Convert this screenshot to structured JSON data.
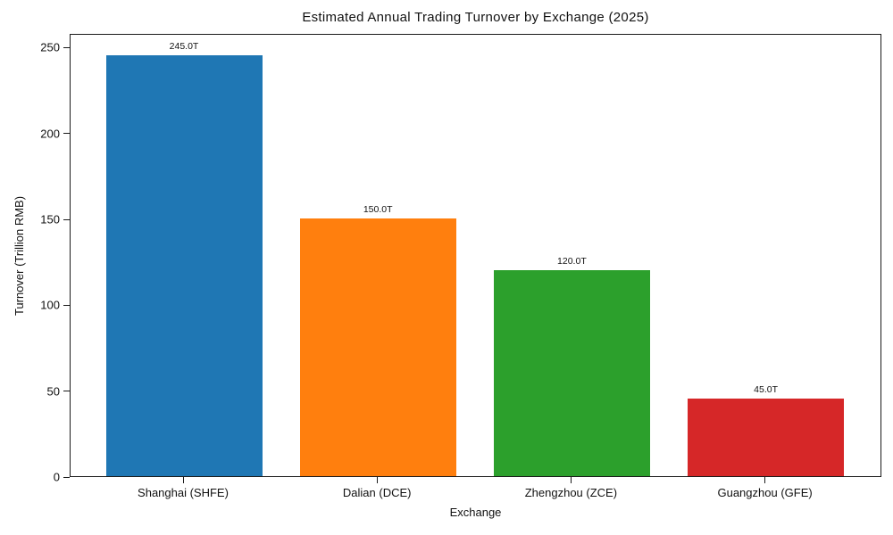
{
  "chart_data": {
    "type": "bar",
    "title": "Estimated Annual Trading Turnover by Exchange (2025)",
    "xlabel": "Exchange",
    "ylabel": "Turnover (Trillion RMB)",
    "categories": [
      "Shanghai (SHFE)",
      "Dalian (DCE)",
      "Zhengzhou (ZCE)",
      "Guangzhou (GFE)"
    ],
    "values": [
      245.0,
      150.0,
      120.0,
      45.0
    ],
    "bar_labels": [
      "245.0T",
      "150.0T",
      "120.0T",
      "45.0T"
    ],
    "bar_colors": [
      "#1f77b4",
      "#ff7f0e",
      "#2ca02c",
      "#d62728"
    ],
    "yticks": [
      0,
      50,
      100,
      150,
      200,
      250
    ],
    "ylim": [
      0,
      258
    ],
    "grid": false,
    "legend_position": "none",
    "background_color": "#ffffff",
    "axis_color": "#1a1a1a",
    "text_color": "#111111"
  }
}
